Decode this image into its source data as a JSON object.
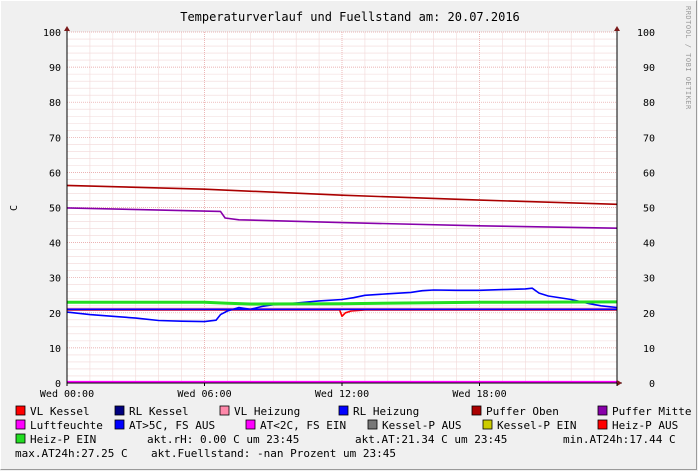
{
  "chart_data": {
    "type": "line",
    "title": "Temperaturverlauf und Fuellstand am: 20.07.2016",
    "watermark": "RRDTOOL / TOBI OETIKER",
    "ylabel": "C",
    "ylim": [
      0,
      100
    ],
    "yticks": [
      "0",
      "10",
      "20",
      "30",
      "40",
      "50",
      "60",
      "70",
      "80",
      "90",
      "100"
    ],
    "xlim": [
      0,
      24
    ],
    "xticks": [
      {
        "x": 0,
        "label": "Wed 00:00"
      },
      {
        "x": 6,
        "label": "Wed 06:00"
      },
      {
        "x": 12,
        "label": "Wed 12:00"
      },
      {
        "x": 18,
        "label": "Wed 18:00"
      }
    ],
    "grid": true,
    "series": [
      {
        "name": "VL Kessel",
        "color": "#ff0000",
        "points": [
          [
            0,
            20.8
          ],
          [
            11.9,
            20.8
          ],
          [
            12.0,
            19.0
          ],
          [
            12.15,
            20.0
          ],
          [
            12.4,
            20.5
          ],
          [
            13,
            20.8
          ],
          [
            24,
            20.8
          ]
        ]
      },
      {
        "name": "RL Kessel",
        "color": "#000080",
        "points": [
          [
            0,
            21.0
          ],
          [
            24,
            21.0
          ]
        ]
      },
      {
        "name": "VL Heizung",
        "color": "#ff88aa",
        "points": [
          [
            0,
            21.2
          ],
          [
            24,
            21.2
          ]
        ]
      },
      {
        "name": "RL Heizung",
        "color": "#0000ff",
        "points": [
          [
            0,
            20.2
          ],
          [
            1,
            19.5
          ],
          [
            2,
            19.0
          ],
          [
            3,
            18.5
          ],
          [
            4,
            17.8
          ],
          [
            5,
            17.6
          ],
          [
            6,
            17.5
          ],
          [
            6.5,
            17.9
          ],
          [
            6.7,
            19.5
          ],
          [
            7,
            20.5
          ],
          [
            7.5,
            21.5
          ],
          [
            8,
            21.0
          ],
          [
            8.5,
            21.8
          ],
          [
            9,
            22.3
          ],
          [
            10,
            22.8
          ],
          [
            11,
            23.4
          ],
          [
            12,
            23.8
          ],
          [
            12.5,
            24.3
          ],
          [
            13,
            25.0
          ],
          [
            14,
            25.4
          ],
          [
            15,
            25.8
          ],
          [
            15.5,
            26.3
          ],
          [
            16,
            26.5
          ],
          [
            17,
            26.4
          ],
          [
            18,
            26.4
          ],
          [
            19,
            26.6
          ],
          [
            20,
            26.8
          ],
          [
            20.3,
            27.0
          ],
          [
            20.6,
            25.6
          ],
          [
            21,
            24.8
          ],
          [
            22,
            23.8
          ],
          [
            22.8,
            22.6
          ],
          [
            23.3,
            22.0
          ],
          [
            24,
            21.5
          ]
        ]
      },
      {
        "name": "Puffer Oben",
        "color": "#aa0000",
        "points": [
          [
            0,
            56.3
          ],
          [
            6,
            55.2
          ],
          [
            12,
            53.5
          ],
          [
            18,
            52.1
          ],
          [
            24,
            50.9
          ]
        ]
      },
      {
        "name": "Puffer Mitte",
        "color": "#8800aa",
        "points": [
          [
            0,
            49.9
          ],
          [
            6.7,
            48.9
          ],
          [
            6.9,
            47.0
          ],
          [
            7.5,
            46.5
          ],
          [
            12,
            45.7
          ],
          [
            18,
            44.8
          ],
          [
            24,
            44.1
          ]
        ]
      },
      {
        "name": "Luftfeuchte",
        "color": "#ff00ff",
        "points": [
          [
            0,
            0.3
          ],
          [
            24,
            0.3
          ]
        ]
      },
      {
        "name": "AT>5C, FS AUS",
        "color": "#0000ff",
        "points": [
          [
            0,
            21.0
          ],
          [
            24,
            21.0
          ]
        ]
      },
      {
        "name": "AT<2C, FS EIN",
        "color": "#ff00ff",
        "points": []
      },
      {
        "name": "Kessel-P AUS",
        "color": "#777777",
        "points": []
      },
      {
        "name": "Kessel-P EIN",
        "color": "#cccc00",
        "points": []
      },
      {
        "name": "Heiz-P AUS",
        "color": "#ff0000",
        "points": []
      },
      {
        "name": "Heiz-P EIN",
        "color": "#22dd22",
        "points": [
          [
            0,
            23.0
          ],
          [
            6,
            23.0
          ],
          [
            7,
            22.7
          ],
          [
            8,
            22.5
          ],
          [
            12,
            22.6
          ],
          [
            18,
            23.0
          ],
          [
            24,
            23.1
          ]
        ]
      }
    ]
  },
  "legend": [
    {
      "label": "VL Kessel",
      "color": "#ff0000"
    },
    {
      "label": "RL Kessel",
      "color": "#000080"
    },
    {
      "label": "VL Heizung",
      "color": "#ff88aa"
    },
    {
      "label": "RL Heizung",
      "color": "#0000ff"
    },
    {
      "label": "Puffer Oben",
      "color": "#aa0000"
    },
    {
      "label": "Puffer Mitte",
      "color": "#8800aa"
    },
    {
      "label": "Luftfeuchte",
      "color": "#ff00ff"
    },
    {
      "label": "AT>5C, FS AUS",
      "color": "#0000ff"
    },
    {
      "label": "AT<2C, FS EIN",
      "color": "#ff00ff"
    },
    {
      "label": "Kessel-P AUS",
      "color": "#777777"
    },
    {
      "label": "Kessel-P EIN",
      "color": "#cccc00"
    },
    {
      "label": "Heiz-P AUS",
      "color": "#ff0000"
    },
    {
      "label": "Heiz-P EIN",
      "color": "#22dd22"
    }
  ],
  "stats": {
    "rh": "akt.rH: 0.00 C um 23:45",
    "at": "akt.AT:21.34 C um 23:45",
    "min": "min.AT24h:17.44 C",
    "max": "max.AT24h:27.25 C",
    "fill": "akt.Fuellstand: -nan Prozent um 23:45"
  }
}
